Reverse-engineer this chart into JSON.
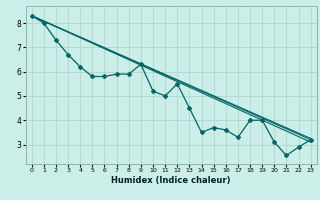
{
  "xlabel": "Humidex (Indice chaleur)",
  "ylabel": "",
  "background_color": "#cceee8",
  "grid_color": "#b0d8d0",
  "line_color": "#006666",
  "xlim": [
    -0.5,
    23.5
  ],
  "ylim": [
    2.2,
    8.7
  ],
  "xticks": [
    0,
    1,
    2,
    3,
    4,
    5,
    6,
    7,
    8,
    9,
    10,
    11,
    12,
    13,
    14,
    15,
    16,
    17,
    18,
    19,
    20,
    21,
    22,
    23
  ],
  "yticks": [
    3,
    4,
    5,
    6,
    7,
    8
  ],
  "series_main": {
    "x": [
      0,
      1,
      2,
      3,
      4,
      5,
      6,
      7,
      8,
      9,
      10,
      11,
      12,
      13,
      14,
      15,
      16,
      17,
      18,
      19,
      20,
      21,
      22,
      23
    ],
    "y": [
      8.3,
      8.0,
      7.3,
      6.7,
      6.2,
      5.8,
      5.8,
      5.9,
      5.9,
      6.3,
      5.2,
      5.0,
      5.5,
      4.5,
      3.5,
      3.7,
      3.6,
      3.3,
      4.0,
      4.0,
      3.1,
      2.55,
      2.9,
      3.2
    ]
  },
  "lines": [
    {
      "x": [
        0,
        23
      ],
      "y": [
        8.3,
        3.1
      ]
    },
    {
      "x": [
        0,
        23
      ],
      "y": [
        8.3,
        3.2
      ]
    },
    {
      "x": [
        0,
        23
      ],
      "y": [
        8.3,
        3.25
      ]
    }
  ]
}
